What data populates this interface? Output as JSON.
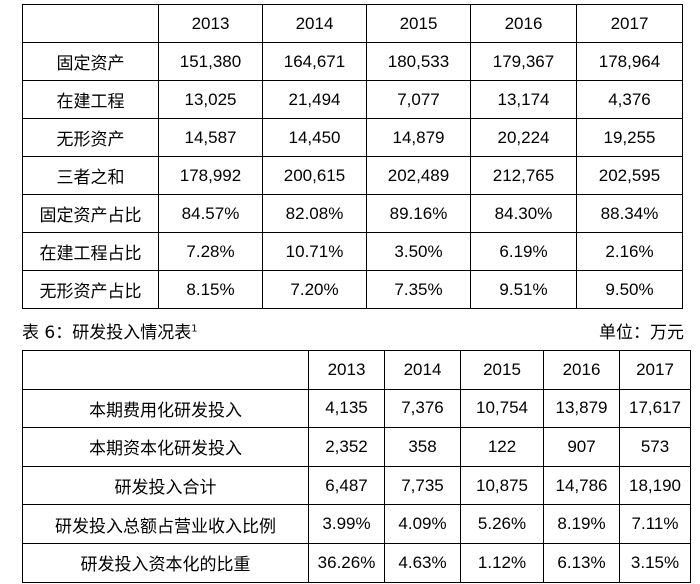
{
  "table1": {
    "years": [
      "2013",
      "2014",
      "2015",
      "2016",
      "2017"
    ],
    "rows": [
      {
        "label": "固定资产",
        "values": [
          "151,380",
          "164,671",
          "180,533",
          "179,367",
          "178,964"
        ]
      },
      {
        "label": "在建工程",
        "values": [
          "13,025",
          "21,494",
          "7,077",
          "13,174",
          "4,376"
        ]
      },
      {
        "label": "无形资产",
        "values": [
          "14,587",
          "14,450",
          "14,879",
          "20,224",
          "19,255"
        ]
      },
      {
        "label": "三者之和",
        "values": [
          "178,992",
          "200,615",
          "202,489",
          "212,765",
          "202,595"
        ]
      },
      {
        "label": "固定资产占比",
        "values": [
          "84.57%",
          "82.08%",
          "89.16%",
          "84.30%",
          "88.34%"
        ]
      },
      {
        "label": "在建工程占比",
        "values": [
          "7.28%",
          "10.71%",
          "3.50%",
          "6.19%",
          "2.16%"
        ]
      },
      {
        "label": "无形资产占比",
        "values": [
          "8.15%",
          "7.20%",
          "7.35%",
          "9.51%",
          "9.50%"
        ]
      }
    ]
  },
  "caption": {
    "title": "表 6：研发投入情况表",
    "footnote": "1",
    "unit": "单位：万元"
  },
  "table2": {
    "years": [
      "2013",
      "2014",
      "2015",
      "2016",
      "2017"
    ],
    "rows": [
      {
        "label": "本期费用化研发投入",
        "values": [
          "4,135",
          "7,376",
          "10,754",
          "13,879",
          "17,617"
        ]
      },
      {
        "label": "本期资本化研发投入",
        "values": [
          "2,352",
          "358",
          "122",
          "907",
          "573"
        ]
      },
      {
        "label": "研发投入合计",
        "values": [
          "6,487",
          "7,735",
          "10,875",
          "14,786",
          "18,190"
        ]
      },
      {
        "label": "研发投入总额占营业收入比例",
        "values": [
          "3.99%",
          "4.09%",
          "5.26%",
          "8.19%",
          "7.11%"
        ]
      },
      {
        "label": "研发投入资本化的比重",
        "values": [
          "36.26%",
          "4.63%",
          "1.12%",
          "6.13%",
          "3.15%"
        ]
      }
    ]
  }
}
